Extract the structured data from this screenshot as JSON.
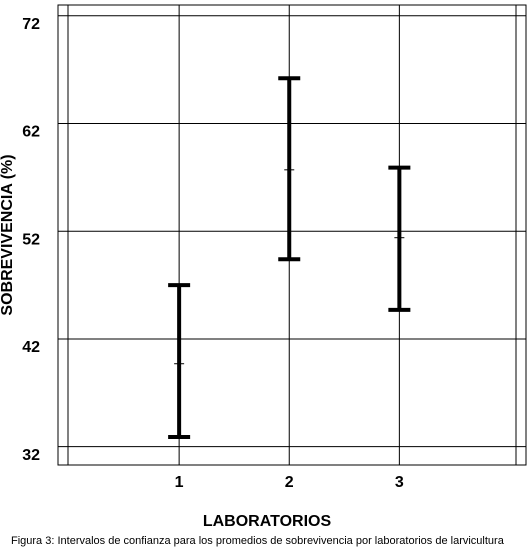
{
  "chart_data": {
    "type": "interval",
    "x_label": "LABORATORIOS",
    "y_label": "SOBREVIVENCIA (%)",
    "caption": "Figura 3: Intervalos de confianza para los promedios de sobrevivencia por laboratorios de larvicultura",
    "x": [
      1,
      2,
      3
    ],
    "lower": [
      32.9,
      49.4,
      44.7
    ],
    "values": [
      39.7,
      57.7,
      51.4
    ],
    "upper": [
      47.0,
      66.2,
      57.9
    ],
    "color": "#000000",
    "xlim": [
      -0.1,
      4.15
    ],
    "xticks": [
      1,
      2,
      3
    ],
    "ylim": [
      30.3,
      73
    ],
    "yticks": [
      32,
      42,
      52,
      62,
      72
    ],
    "grid": true
  }
}
